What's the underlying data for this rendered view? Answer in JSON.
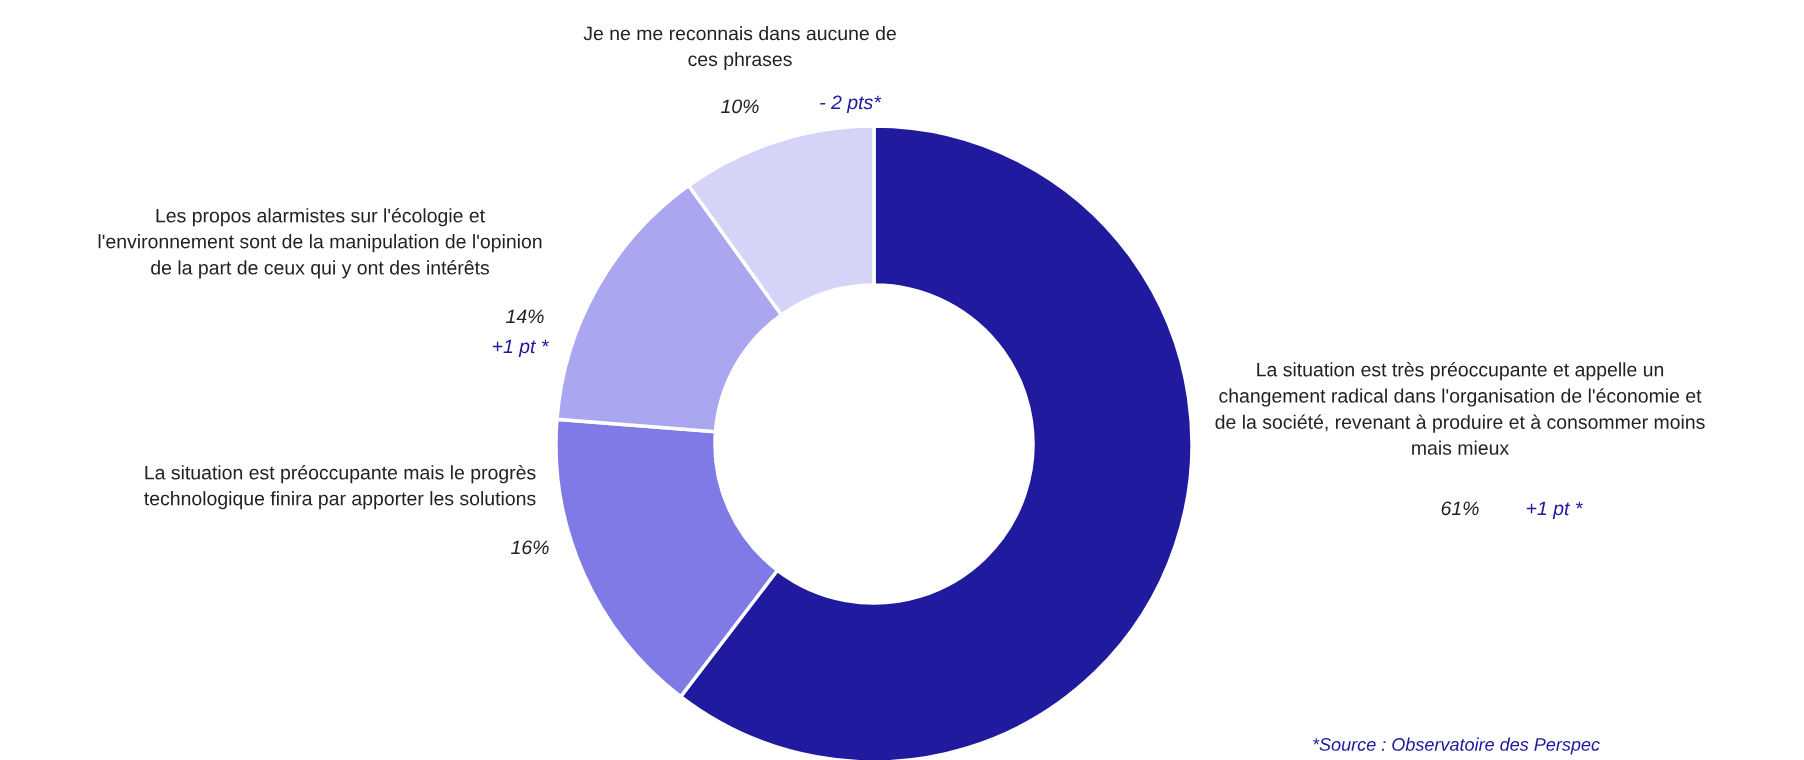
{
  "chart_data": {
    "type": "donut",
    "categories": [
      "La situation est très préoccupante et appelle un\nchangement radical dans l'organisation de l'économie et\nde la société, revenant à produire et à consommer moins\nmais mieux",
      "La situation est préoccupante mais le progrès\ntechnologique finira par apporter les solutions",
      "Les propos alarmistes sur l'écologie et\nl'environnement sont de la manipulation de l'opinion\nde la part de ceux qui y ont des intérêts",
      "Je ne me reconnais dans aucune de\nces phrases"
    ],
    "values": [
      61,
      16,
      14,
      10
    ],
    "colors": [
      "#1f1a9e",
      "#7f7ae6",
      "#aaa6ef",
      "#d5d3f8"
    ],
    "value_labels": [
      "61%",
      "16%",
      "14%",
      "10%"
    ],
    "annotations": [
      "+1 pt *",
      "+1 pt *",
      "- 2 pts*",
      "*Source : Observatoire des Perspec"
    ]
  }
}
